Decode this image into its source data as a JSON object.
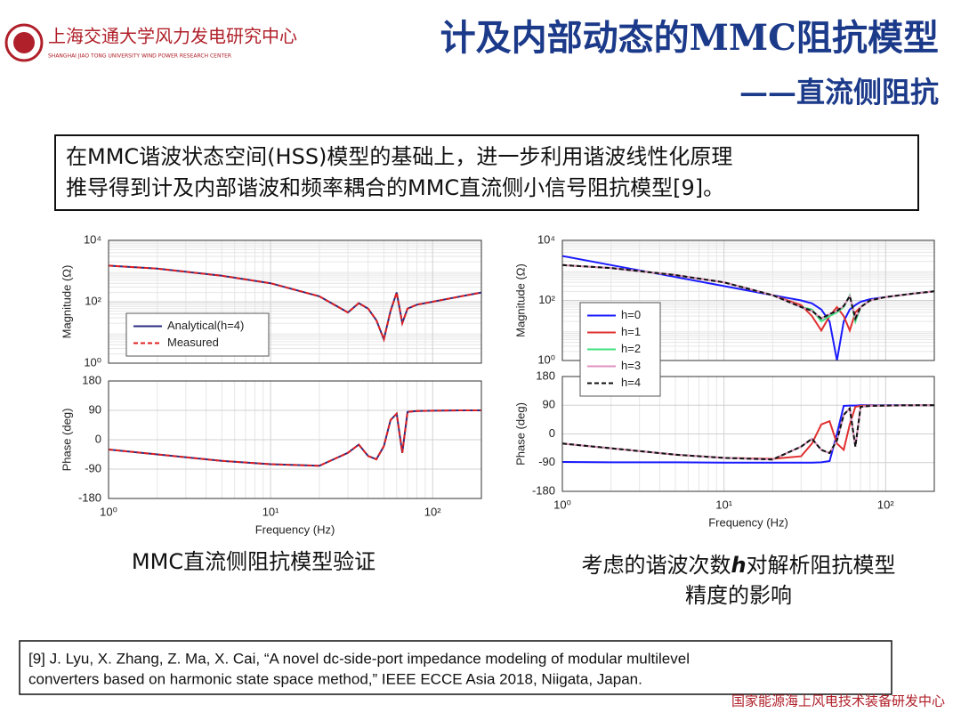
{
  "header": {
    "logo_cn": "上海交通大学风力发电研究中心",
    "logo_en": "SHANGHAI JIAO TONG UNIVERSITY WIND POWER RESEARCH CENTER",
    "title": "计及内部动态的MMC阻抗模型",
    "subtitle": "——直流侧阻抗"
  },
  "intro": [
    "在MMC谐波状态空间(HSS)模型的基础上，进一步利用谐波线性化原理",
    "推导得到计及内部谐波和频率耦合的MMC直流侧小信号阻抗模型[9]。"
  ],
  "captions": {
    "left": "MMC直流侧阻抗模型验证",
    "right_line1": [
      "考虑的谐波次数",
      "h",
      "对解析阻抗模型"
    ],
    "right_line2": "精度的影响"
  },
  "reference": [
    "[9] J. Lyu, X. Zhang, Z. Ma, X. Cai, “A novel dc-side-port impedance modeling of modular multilevel",
    "converters based on harmonic state space method,” IEEE ECCE Asia 2018, Niigata, Japan."
  ],
  "footer": "国家能源海上风电技术装备研发中心",
  "chart_data": [
    {
      "type": "line",
      "ylabel": "Magnitude (Ω)",
      "xscale": "log",
      "yscale": "log",
      "grid": true,
      "legend": "lower left",
      "x": [
        1,
        2,
        5,
        10,
        20,
        30,
        35,
        40,
        45,
        50,
        55,
        60,
        65,
        70,
        80,
        100,
        150,
        200
      ],
      "xlim": [
        1,
        200
      ],
      "xticks": [
        1,
        10,
        100
      ],
      "ylim": [
        1,
        10000
      ],
      "yticks": [
        {
          "value": 1,
          "label": "10⁰"
        },
        {
          "value": 100,
          "label": "10²"
        },
        {
          "value": 10000,
          "label": "10⁴"
        }
      ],
      "series": [
        {
          "name": "Analytical(h=4)",
          "color": "#2b2b80",
          "dash": false,
          "values": [
            1500,
            1200,
            700,
            400,
            150,
            45,
            90,
            60,
            25,
            6,
            50,
            200,
            20,
            60,
            80,
            100,
            150,
            200
          ]
        },
        {
          "name": "Measured",
          "color": "#e02020",
          "dash": true,
          "values": [
            1500,
            1200,
            700,
            400,
            150,
            45,
            90,
            60,
            25,
            6,
            50,
            200,
            20,
            60,
            80,
            100,
            150,
            200
          ]
        }
      ]
    },
    {
      "type": "line",
      "ylabel": "Phase (deg)",
      "xlabel": "Frequency (Hz)",
      "xscale": "log",
      "grid": true,
      "x": [
        1,
        2,
        5,
        10,
        20,
        30,
        35,
        40,
        45,
        50,
        55,
        60,
        65,
        70,
        80,
        100,
        150,
        200
      ],
      "xlim": [
        1,
        200
      ],
      "xticks": [
        {
          "value": 1,
          "label": "10⁰"
        },
        {
          "value": 10,
          "label": "10¹"
        },
        {
          "value": 100,
          "label": "10²"
        }
      ],
      "ylim": [
        -180,
        180
      ],
      "yticks": [
        -180,
        -90,
        0,
        90,
        180
      ],
      "series": [
        {
          "color": "#2b2b80",
          "dash": false,
          "values": [
            -30,
            -45,
            -65,
            -75,
            -80,
            -40,
            -15,
            -50,
            -60,
            -20,
            60,
            80,
            -40,
            85,
            88,
            89,
            90,
            90
          ]
        },
        {
          "color": "#e02020",
          "dash": true,
          "values": [
            -30,
            -45,
            -65,
            -75,
            -80,
            -40,
            -15,
            -50,
            -60,
            -20,
            60,
            80,
            -40,
            85,
            88,
            89,
            90,
            90
          ]
        }
      ]
    },
    {
      "type": "line",
      "ylabel": "Magnitude (Ω)",
      "xscale": "log",
      "yscale": "log",
      "grid": true,
      "legend": "lower left",
      "x": [
        1,
        2,
        5,
        10,
        20,
        30,
        35,
        40,
        45,
        50,
        55,
        60,
        65,
        70,
        80,
        100,
        150,
        200
      ],
      "xlim": [
        1,
        200
      ],
      "xticks": [
        1,
        10,
        100
      ],
      "ylim": [
        1,
        10000
      ],
      "yticks": [
        {
          "value": 1,
          "label": "10⁰"
        },
        {
          "value": 100,
          "label": "10²"
        },
        {
          "value": 10000,
          "label": "10⁴"
        }
      ],
      "series": [
        {
          "name": "h=0",
          "color": "#1a1aff",
          "dash": false,
          "values": [
            3000,
            1500,
            600,
            300,
            150,
            100,
            80,
            50,
            20,
            1,
            20,
            50,
            70,
            90,
            110,
            130,
            170,
            200
          ]
        },
        {
          "name": "h=1",
          "color": "#e03030",
          "dash": false,
          "values": [
            1500,
            1200,
            700,
            400,
            150,
            70,
            30,
            10,
            30,
            60,
            30,
            10,
            40,
            60,
            100,
            130,
            170,
            200
          ]
        },
        {
          "name": "h=2",
          "color": "#40e080",
          "dash": false,
          "values": [
            1500,
            1200,
            700,
            400,
            150,
            60,
            50,
            20,
            30,
            40,
            60,
            150,
            20,
            60,
            100,
            130,
            170,
            200
          ]
        },
        {
          "name": "h=3",
          "color": "#e090c0",
          "dash": false,
          "values": [
            1500,
            1200,
            700,
            400,
            150,
            60,
            45,
            25,
            35,
            45,
            65,
            140,
            25,
            60,
            100,
            130,
            170,
            200
          ]
        },
        {
          "name": "h=4",
          "color": "#111111",
          "dash": true,
          "values": [
            1500,
            1200,
            700,
            400,
            150,
            60,
            45,
            25,
            35,
            45,
            65,
            140,
            25,
            60,
            100,
            130,
            170,
            200
          ]
        }
      ]
    },
    {
      "type": "line",
      "ylabel": "Phase (deg)",
      "xlabel": "Frequency (Hz)",
      "xscale": "log",
      "grid": true,
      "x": [
        1,
        2,
        5,
        10,
        20,
        30,
        35,
        40,
        45,
        50,
        55,
        60,
        65,
        70,
        80,
        100,
        150,
        200
      ],
      "xlim": [
        1,
        200
      ],
      "xticks": [
        {
          "value": 1,
          "label": "10⁰"
        },
        {
          "value": 10,
          "label": "10¹"
        },
        {
          "value": 100,
          "label": "10²"
        }
      ],
      "ylim": [
        -180,
        180
      ],
      "yticks": [
        -180,
        -90,
        0,
        90,
        180
      ],
      "series": [
        {
          "color": "#1a1aff",
          "dash": false,
          "values": [
            -88,
            -89,
            -89,
            -90,
            -90,
            -90,
            -90,
            -89,
            -85,
            0,
            88,
            89,
            89,
            90,
            90,
            90,
            90,
            90
          ]
        },
        {
          "color": "#e03030",
          "dash": false,
          "values": [
            -30,
            -45,
            -65,
            -75,
            -78,
            -70,
            -30,
            30,
            40,
            -30,
            -50,
            30,
            85,
            88,
            89,
            89,
            90,
            90
          ]
        },
        {
          "color": "#40e080",
          "dash": false,
          "values": [
            -30,
            -45,
            -65,
            -75,
            -80,
            -40,
            -15,
            -50,
            -60,
            -20,
            60,
            80,
            -40,
            85,
            88,
            89,
            90,
            90
          ]
        },
        {
          "color": "#e090c0",
          "dash": false,
          "values": [
            -30,
            -45,
            -65,
            -75,
            -80,
            -40,
            -15,
            -50,
            -60,
            -20,
            60,
            80,
            -40,
            85,
            88,
            89,
            90,
            90
          ]
        },
        {
          "color": "#111111",
          "dash": true,
          "values": [
            -30,
            -45,
            -65,
            -75,
            -80,
            -40,
            -15,
            -50,
            -60,
            -20,
            60,
            80,
            -40,
            85,
            88,
            89,
            90,
            90
          ]
        }
      ]
    }
  ]
}
